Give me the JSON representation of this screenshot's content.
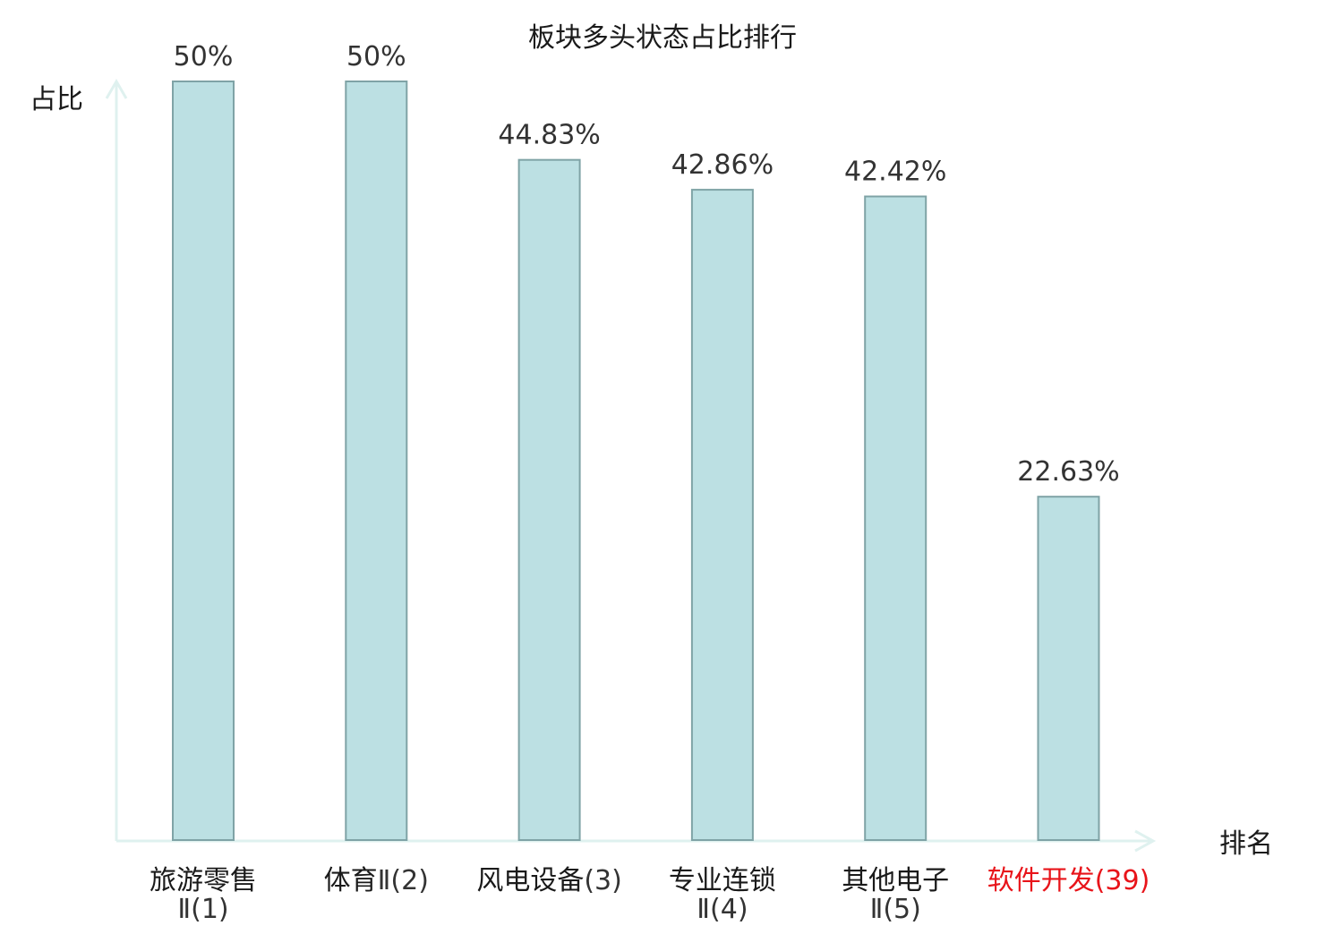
{
  "chart_data": {
    "type": "bar",
    "title": "板块多头状态占比排行",
    "ylabel": "占比",
    "xlabel": "排名",
    "ylim": [
      0,
      50
    ],
    "grid": false,
    "legend": "none",
    "categories": [
      {
        "name": "旅游零售",
        "rank": "Ⅱ(1)",
        "highlight": false
      },
      {
        "name": "体育",
        "rank": "Ⅱ(2)",
        "highlight": false
      },
      {
        "name": "风电设备",
        "rank": "(3)",
        "highlight": false
      },
      {
        "name": "专业连锁",
        "rank": "Ⅱ(4)",
        "highlight": false
      },
      {
        "name": "其他电子",
        "rank": "Ⅱ(5)",
        "highlight": false
      },
      {
        "name": "软件开发",
        "rank": "(39)",
        "highlight": true
      }
    ],
    "values": [
      50,
      50,
      44.83,
      42.86,
      42.42,
      22.63
    ],
    "value_labels": [
      "50%",
      "50%",
      "44.83%",
      "42.86%",
      "42.42%",
      "22.63%"
    ],
    "colors": {
      "bar_fill": "#bce0e3",
      "bar_stroke": "#7fa3a6",
      "axis": "#dff1ef",
      "text": "#333333",
      "category_text": "#1a1a1a",
      "highlight_text": "#e8141a"
    }
  }
}
